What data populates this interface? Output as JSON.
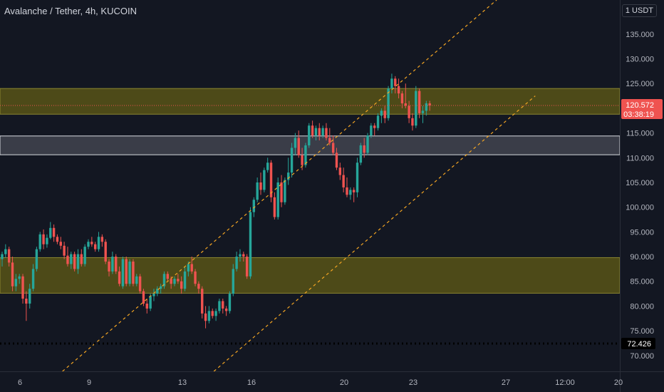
{
  "header": {
    "title": "Avalanche / Tether, 4h, KUCOIN",
    "currency": "1 USDT"
  },
  "colors": {
    "background": "#131722",
    "up": "#26a69a",
    "down": "#ef5350",
    "zone_fill": "#4d4a18",
    "zone_border": "#8a8530",
    "mid_zone_fill": "#3a3d48",
    "channel": "#f5a623",
    "price_line": "#ef5350",
    "dotted_level": "#000000"
  },
  "chart_data": {
    "type": "candlestick",
    "title": "Avalanche / Tether, 4h, KUCOIN",
    "ylim": [
      66.8,
      141.9
    ],
    "y_ticks": [
      "135.000",
      "130.000",
      "125.000",
      "120.000",
      "115.000",
      "110.000",
      "105.000",
      "100.000",
      "95.000",
      "90.000",
      "85.000",
      "80.000",
      "75.000",
      "70.000"
    ],
    "x_ticks": [
      "6",
      "9",
      "13",
      "16",
      "20",
      "23",
      "27",
      "12:00",
      "20"
    ],
    "current_price": {
      "value": 120.572,
      "label": "120.572",
      "countdown": "03:38:19"
    },
    "level_badge": {
      "value": 72.426,
      "label": "72.426"
    },
    "zones": [
      {
        "name": "resistance-zone",
        "low": 118.8,
        "high": 124.0
      },
      {
        "name": "mid-zone",
        "low": 110.6,
        "high": 114.4
      },
      {
        "name": "support-zone",
        "low": 82.6,
        "high": 89.8
      }
    ],
    "channel_lines": [
      {
        "name": "upper-channel",
        "from": {
          "bar": 17.5,
          "price": 66.8
        },
        "to": {
          "bar": 143.4,
          "price": 141.9
        }
      },
      {
        "name": "lower-channel",
        "from": {
          "bar": 61.4,
          "price": 66.8
        },
        "to": {
          "bar": 154.6,
          "price": 122.5
        }
      }
    ],
    "candles": [
      [
        0,
        89.5,
        91.0,
        88.0,
        90.5
      ],
      [
        1,
        90.5,
        92.5,
        89.8,
        91.5
      ],
      [
        2,
        91.5,
        92.0,
        88.0,
        88.8
      ],
      [
        3,
        88.8,
        90.0,
        83.0,
        84.0
      ],
      [
        4,
        84.0,
        86.5,
        83.0,
        85.5
      ],
      [
        5,
        85.5,
        86.5,
        84.5,
        86.0
      ],
      [
        6,
        86.0,
        86.5,
        80.5,
        81.5
      ],
      [
        7,
        81.5,
        83.0,
        77.0,
        80.5
      ],
      [
        8,
        80.5,
        84.5,
        79.5,
        83.5
      ],
      [
        9,
        83.5,
        88.5,
        83.0,
        87.5
      ],
      [
        10,
        87.5,
        92.0,
        87.0,
        91.5
      ],
      [
        11,
        91.5,
        95.0,
        91.0,
        94.5
      ],
      [
        12,
        94.5,
        95.5,
        91.5,
        92.5
      ],
      [
        13,
        92.5,
        94.5,
        91.8,
        93.8
      ],
      [
        14,
        93.8,
        97.0,
        93.5,
        95.8
      ],
      [
        15,
        95.8,
        96.5,
        93.0,
        94.0
      ],
      [
        16,
        94.0,
        94.5,
        92.5,
        93.0
      ],
      [
        17,
        93.0,
        94.0,
        91.5,
        92.2
      ],
      [
        18,
        92.2,
        93.0,
        89.5,
        90.2
      ],
      [
        19,
        90.2,
        92.0,
        88.0,
        88.5
      ],
      [
        20,
        88.5,
        91.0,
        87.5,
        90.5
      ],
      [
        21,
        90.5,
        91.0,
        87.0,
        87.5
      ],
      [
        22,
        87.5,
        91.5,
        86.5,
        90.5
      ],
      [
        23,
        90.5,
        91.5,
        88.0,
        88.5
      ],
      [
        24,
        88.5,
        92.5,
        88.0,
        92.0
      ],
      [
        25,
        92.0,
        93.5,
        91.5,
        93.0
      ],
      [
        26,
        93.0,
        94.0,
        92.0,
        92.5
      ],
      [
        27,
        92.5,
        93.0,
        91.0,
        91.5
      ],
      [
        28,
        91.5,
        95.0,
        91.0,
        94.0
      ],
      [
        29,
        94.0,
        94.5,
        92.0,
        93.0
      ],
      [
        30,
        93.0,
        93.5,
        88.5,
        89.0
      ],
      [
        31,
        89.0,
        89.5,
        86.0,
        87.0
      ],
      [
        32,
        87.0,
        91.0,
        86.5,
        90.0
      ],
      [
        33,
        90.0,
        90.5,
        86.5,
        87.0
      ],
      [
        34,
        87.0,
        88.0,
        84.0,
        84.5
      ],
      [
        35,
        84.0,
        90.0,
        83.5,
        89.5
      ],
      [
        36,
        89.5,
        90.0,
        84.0,
        84.5
      ],
      [
        37,
        84.5,
        89.5,
        84.0,
        89.0
      ],
      [
        38,
        89.0,
        89.5,
        84.0,
        84.5
      ],
      [
        39,
        84.5,
        86.5,
        84.0,
        86.0
      ],
      [
        40,
        86.0,
        86.5,
        82.5,
        83.0
      ],
      [
        41,
        83.0,
        83.5,
        80.0,
        80.5
      ],
      [
        42,
        80.5,
        81.5,
        78.5,
        79.5
      ],
      [
        43,
        79.5,
        82.5,
        79.0,
        82.0
      ],
      [
        44,
        82.0,
        83.5,
        81.0,
        82.5
      ],
      [
        45,
        82.5,
        84.0,
        82.0,
        83.5
      ],
      [
        46,
        83.5,
        84.5,
        82.5,
        84.0
      ],
      [
        47,
        84.0,
        87.0,
        83.5,
        86.5
      ],
      [
        48,
        86.5,
        87.0,
        85.0,
        85.5
      ],
      [
        49,
        85.5,
        86.0,
        83.5,
        84.5
      ],
      [
        50,
        84.5,
        86.0,
        84.0,
        85.5
      ],
      [
        51,
        85.5,
        86.5,
        84.5,
        85.0
      ],
      [
        52,
        85.0,
        86.0,
        82.5,
        83.5
      ],
      [
        53,
        83.5,
        88.0,
        83.0,
        87.0
      ],
      [
        54,
        87.0,
        89.0,
        86.0,
        88.5
      ],
      [
        55,
        88.5,
        90.0,
        86.5,
        87.0
      ],
      [
        56,
        87.0,
        87.5,
        84.0,
        84.5
      ],
      [
        57,
        84.5,
        85.0,
        82.5,
        83.5
      ],
      [
        58,
        83.5,
        84.0,
        77.5,
        78.5
      ],
      [
        59,
        78.5,
        80.0,
        75.5,
        77.0
      ],
      [
        60,
        77.0,
        80.0,
        76.5,
        79.0
      ],
      [
        61,
        79.0,
        79.5,
        77.5,
        78.0
      ],
      [
        62,
        78.0,
        79.5,
        77.0,
        79.0
      ],
      [
        63,
        79.0,
        81.5,
        78.5,
        81.0
      ],
      [
        64,
        81.0,
        81.5,
        78.5,
        79.5
      ],
      [
        65,
        79.5,
        80.0,
        78.0,
        79.0
      ],
      [
        66,
        79.0,
        83.0,
        78.5,
        82.5
      ],
      [
        67,
        82.5,
        88.5,
        82.0,
        87.5
      ],
      [
        68,
        87.5,
        91.0,
        87.0,
        90.0
      ],
      [
        69,
        90.0,
        91.5,
        89.0,
        90.5
      ],
      [
        70,
        90.5,
        91.0,
        89.0,
        90.0
      ],
      [
        71,
        90.0,
        90.5,
        85.5,
        86.0
      ],
      [
        72,
        86.0,
        100.0,
        85.5,
        99.0
      ],
      [
        73,
        99.0,
        102.0,
        98.0,
        101.5
      ],
      [
        74,
        101.5,
        106.0,
        101.0,
        105.0
      ],
      [
        75,
        105.0,
        107.0,
        102.5,
        103.5
      ],
      [
        76,
        103.5,
        108.0,
        103.0,
        107.5
      ],
      [
        77,
        107.5,
        110.0,
        107.0,
        109.0
      ],
      [
        78,
        109.0,
        109.5,
        101.0,
        102.0
      ],
      [
        79,
        102.0,
        103.0,
        97.5,
        98.0
      ],
      [
        80,
        98.0,
        106.0,
        97.5,
        105.0
      ],
      [
        81,
        105.0,
        106.5,
        100.0,
        101.0
      ],
      [
        82,
        101.0,
        106.0,
        100.5,
        105.5
      ],
      [
        83,
        105.5,
        110.0,
        104.5,
        107.0
      ],
      [
        84,
        107.0,
        113.0,
        106.0,
        112.0
      ],
      [
        85,
        112.0,
        115.0,
        110.5,
        114.0
      ],
      [
        86,
        114.0,
        115.5,
        110.0,
        110.5
      ],
      [
        87,
        110.5,
        112.0,
        107.5,
        108.5
      ],
      [
        88,
        108.5,
        113.0,
        108.0,
        112.5
      ],
      [
        89,
        112.5,
        117.0,
        112.0,
        116.5
      ],
      [
        90,
        116.5,
        117.5,
        114.0,
        114.5
      ],
      [
        91,
        114.5,
        116.5,
        113.5,
        116.0
      ],
      [
        92,
        116.0,
        117.0,
        113.5,
        114.5
      ],
      [
        93,
        114.5,
        116.5,
        114.0,
        116.0
      ],
      [
        94,
        116.0,
        117.0,
        113.5,
        114.0
      ],
      [
        95,
        114.0,
        116.0,
        112.5,
        113.0
      ],
      [
        96,
        113.0,
        114.5,
        110.5,
        111.0
      ],
      [
        97,
        111.0,
        112.0,
        107.5,
        108.0
      ],
      [
        98,
        108.0,
        109.0,
        105.5,
        106.5
      ],
      [
        99,
        106.5,
        108.0,
        103.0,
        104.0
      ],
      [
        100,
        104.0,
        106.0,
        102.0,
        102.5
      ],
      [
        101,
        102.5,
        104.0,
        101.5,
        103.5
      ],
      [
        102,
        103.5,
        104.0,
        101.0,
        103.0
      ],
      [
        103,
        103.0,
        110.0,
        102.0,
        109.0
      ],
      [
        104,
        109.0,
        113.0,
        108.5,
        112.5
      ],
      [
        105,
        112.5,
        114.0,
        110.0,
        111.0
      ],
      [
        106,
        111.0,
        115.0,
        110.5,
        114.5
      ],
      [
        107,
        114.5,
        117.0,
        114.0,
        116.5
      ],
      [
        108,
        116.5,
        117.0,
        114.5,
        116.0
      ],
      [
        109,
        116.0,
        119.0,
        115.5,
        118.5
      ],
      [
        110,
        118.5,
        120.0,
        117.0,
        119.5
      ],
      [
        111,
        119.5,
        120.5,
        117.0,
        118.0
      ],
      [
        112,
        118.0,
        124.5,
        117.5,
        124.0
      ],
      [
        113,
        124.0,
        127.0,
        123.0,
        126.0
      ],
      [
        114,
        126.0,
        126.5,
        123.0,
        124.5
      ],
      [
        115,
        124.5,
        126.0,
        122.0,
        123.0
      ],
      [
        116,
        123.0,
        123.5,
        120.0,
        121.0
      ],
      [
        117,
        121.0,
        125.0,
        120.0,
        120.5
      ],
      [
        118,
        120.5,
        121.5,
        117.0,
        118.0
      ],
      [
        119,
        118.0,
        119.0,
        115.5,
        116.5
      ],
      [
        120,
        116.5,
        124.5,
        116.0,
        123.5
      ],
      [
        121,
        123.5,
        124.0,
        118.0,
        119.0
      ],
      [
        122,
        119.0,
        120.5,
        117.0,
        119.5
      ],
      [
        123,
        119.5,
        121.5,
        118.5,
        121.0
      ],
      [
        124,
        121.0,
        121.5,
        119.5,
        120.572
      ]
    ]
  }
}
